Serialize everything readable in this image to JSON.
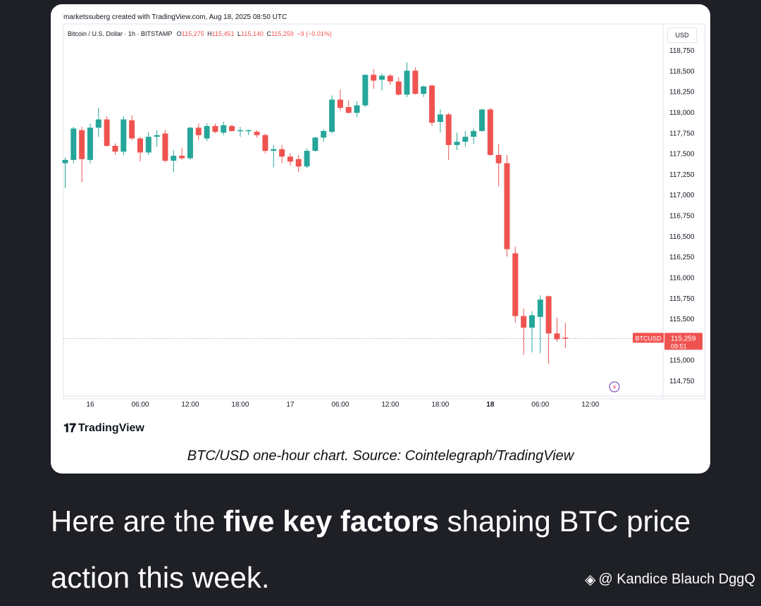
{
  "card": {
    "created_by": "marketssuberg created with TradingView.com, Aug 18, 2025 08:50 UTC",
    "legend": {
      "symbol": "Bitcoin / U.S. Dollar · 1h · BITSTAMP",
      "o_label": "O",
      "o_value": "115,275",
      "h_label": "H",
      "h_value": "115,451",
      "l_label": "L",
      "l_value": "115,140",
      "c_label": "C",
      "c_value": "115,259",
      "change": "−9 (−0.01%)"
    },
    "currency": "USD",
    "logo_text": "TradingView",
    "caption": "BTC/USD one-hour chart. Source: Cointelegraph/TradingView"
  },
  "headline": {
    "part1": "Here are the ",
    "bold": "five key factors",
    "part2": " shaping BTC price action this week."
  },
  "watermark": "@ Kandice Blauch DggQ",
  "chart_data": {
    "type": "candlestick",
    "symbol": "Bitcoin / U.S. Dollar",
    "interval": "1h",
    "exchange": "BITSTAMP",
    "ylim": [
      114600,
      118850
    ],
    "yticks": [
      114750,
      115000,
      115250,
      115500,
      115750,
      116000,
      116250,
      116500,
      116750,
      117000,
      117250,
      117500,
      117750,
      118000,
      118250,
      118500,
      118750
    ],
    "ytick_labels": [
      "114,750",
      "115,000",
      "115,250",
      "115,500",
      "115,750",
      "116,000",
      "116,250",
      "116,500",
      "116,750",
      "117,000",
      "117,250",
      "117,500",
      "117,750",
      "118,000",
      "118,250",
      "118,500",
      "118,750"
    ],
    "xticks": [
      {
        "label": "16",
        "bar": 3,
        "bold": false
      },
      {
        "label": "06:00",
        "bar": 9,
        "bold": false
      },
      {
        "label": "12:00",
        "bar": 15,
        "bold": false
      },
      {
        "label": "18:00",
        "bar": 21,
        "bold": false
      },
      {
        "label": "17",
        "bar": 27,
        "bold": false
      },
      {
        "label": "06:00",
        "bar": 33,
        "bold": false
      },
      {
        "label": "12:00",
        "bar": 39,
        "bold": false
      },
      {
        "label": "18:00",
        "bar": 45,
        "bold": false
      },
      {
        "label": "18",
        "bar": 51,
        "bold": true
      },
      {
        "label": "06:00",
        "bar": 57,
        "bold": false
      },
      {
        "label": "12:00",
        "bar": 63,
        "bold": false
      }
    ],
    "price_tag": {
      "symbol": "BTCUSD",
      "price": "115,259",
      "countdown": "09:51",
      "value": 115259
    },
    "candles": [
      {
        "o": 117380,
        "h": 117450,
        "l": 117080,
        "c": 117420
      },
      {
        "o": 117420,
        "h": 117820,
        "l": 117380,
        "c": 117800
      },
      {
        "o": 117780,
        "h": 117820,
        "l": 117150,
        "c": 117430
      },
      {
        "o": 117420,
        "h": 117860,
        "l": 117380,
        "c": 117810
      },
      {
        "o": 117810,
        "h": 118050,
        "l": 117700,
        "c": 117910
      },
      {
        "o": 117910,
        "h": 117950,
        "l": 117580,
        "c": 117590
      },
      {
        "o": 117590,
        "h": 117620,
        "l": 117480,
        "c": 117520
      },
      {
        "o": 117520,
        "h": 117950,
        "l": 117480,
        "c": 117910
      },
      {
        "o": 117900,
        "h": 117960,
        "l": 117660,
        "c": 117680
      },
      {
        "o": 117680,
        "h": 117700,
        "l": 117400,
        "c": 117510
      },
      {
        "o": 117510,
        "h": 117760,
        "l": 117480,
        "c": 117700
      },
      {
        "o": 117700,
        "h": 117780,
        "l": 117580,
        "c": 117720
      },
      {
        "o": 117740,
        "h": 117780,
        "l": 117390,
        "c": 117410
      },
      {
        "o": 117410,
        "h": 117540,
        "l": 117270,
        "c": 117470
      },
      {
        "o": 117470,
        "h": 117560,
        "l": 117420,
        "c": 117440
      },
      {
        "o": 117440,
        "h": 117820,
        "l": 117420,
        "c": 117810
      },
      {
        "o": 117810,
        "h": 117860,
        "l": 117660,
        "c": 117720
      },
      {
        "o": 117680,
        "h": 117860,
        "l": 117650,
        "c": 117830
      },
      {
        "o": 117830,
        "h": 117860,
        "l": 117740,
        "c": 117760
      },
      {
        "o": 117750,
        "h": 117880,
        "l": 117720,
        "c": 117840
      },
      {
        "o": 117830,
        "h": 117850,
        "l": 117760,
        "c": 117770
      },
      {
        "o": 117770,
        "h": 117820,
        "l": 117700,
        "c": 117780
      },
      {
        "o": 117770,
        "h": 117790,
        "l": 117720,
        "c": 117780
      },
      {
        "o": 117760,
        "h": 117780,
        "l": 117690,
        "c": 117720
      },
      {
        "o": 117720,
        "h": 117740,
        "l": 117500,
        "c": 117530
      },
      {
        "o": 117530,
        "h": 117600,
        "l": 117330,
        "c": 117550
      },
      {
        "o": 117550,
        "h": 117600,
        "l": 117380,
        "c": 117460
      },
      {
        "o": 117460,
        "h": 117500,
        "l": 117350,
        "c": 117400
      },
      {
        "o": 117430,
        "h": 117480,
        "l": 117270,
        "c": 117340
      },
      {
        "o": 117340,
        "h": 117560,
        "l": 117320,
        "c": 117530
      },
      {
        "o": 117530,
        "h": 117700,
        "l": 117520,
        "c": 117690
      },
      {
        "o": 117690,
        "h": 117790,
        "l": 117640,
        "c": 117770
      },
      {
        "o": 117760,
        "h": 118200,
        "l": 117740,
        "c": 118150
      },
      {
        "o": 118150,
        "h": 118270,
        "l": 118020,
        "c": 118050
      },
      {
        "o": 118060,
        "h": 118140,
        "l": 117980,
        "c": 117990
      },
      {
        "o": 117990,
        "h": 118130,
        "l": 117940,
        "c": 118080
      },
      {
        "o": 118080,
        "h": 118450,
        "l": 118060,
        "c": 118450
      },
      {
        "o": 118450,
        "h": 118520,
        "l": 118280,
        "c": 118380
      },
      {
        "o": 118390,
        "h": 118470,
        "l": 118260,
        "c": 118440
      },
      {
        "o": 118440,
        "h": 118460,
        "l": 118330,
        "c": 118370
      },
      {
        "o": 118370,
        "h": 118420,
        "l": 118200,
        "c": 118210
      },
      {
        "o": 118210,
        "h": 118600,
        "l": 118180,
        "c": 118500
      },
      {
        "o": 118500,
        "h": 118540,
        "l": 118210,
        "c": 118220
      },
      {
        "o": 118220,
        "h": 118320,
        "l": 118180,
        "c": 118310
      },
      {
        "o": 118320,
        "h": 118330,
        "l": 117830,
        "c": 117870
      },
      {
        "o": 117880,
        "h": 118030,
        "l": 117750,
        "c": 117970
      },
      {
        "o": 117970,
        "h": 117990,
        "l": 117420,
        "c": 117600
      },
      {
        "o": 117600,
        "h": 117750,
        "l": 117540,
        "c": 117640
      },
      {
        "o": 117640,
        "h": 117770,
        "l": 117580,
        "c": 117700
      },
      {
        "o": 117700,
        "h": 117800,
        "l": 117610,
        "c": 117770
      },
      {
        "o": 117770,
        "h": 118040,
        "l": 117760,
        "c": 118030
      },
      {
        "o": 118030,
        "h": 118050,
        "l": 117470,
        "c": 117480
      },
      {
        "o": 117480,
        "h": 117610,
        "l": 117100,
        "c": 117380
      },
      {
        "o": 117380,
        "h": 117480,
        "l": 116250,
        "c": 116340
      },
      {
        "o": 116290,
        "h": 116370,
        "l": 115450,
        "c": 115530
      },
      {
        "o": 115530,
        "h": 115620,
        "l": 115060,
        "c": 115390
      },
      {
        "o": 115390,
        "h": 115590,
        "l": 115090,
        "c": 115540
      },
      {
        "o": 115520,
        "h": 115780,
        "l": 115080,
        "c": 115730
      },
      {
        "o": 115770,
        "h": 115780,
        "l": 114950,
        "c": 115320
      },
      {
        "o": 115320,
        "h": 115510,
        "l": 115220,
        "c": 115250
      },
      {
        "o": 115270,
        "h": 115450,
        "l": 115140,
        "c": 115260
      }
    ]
  }
}
